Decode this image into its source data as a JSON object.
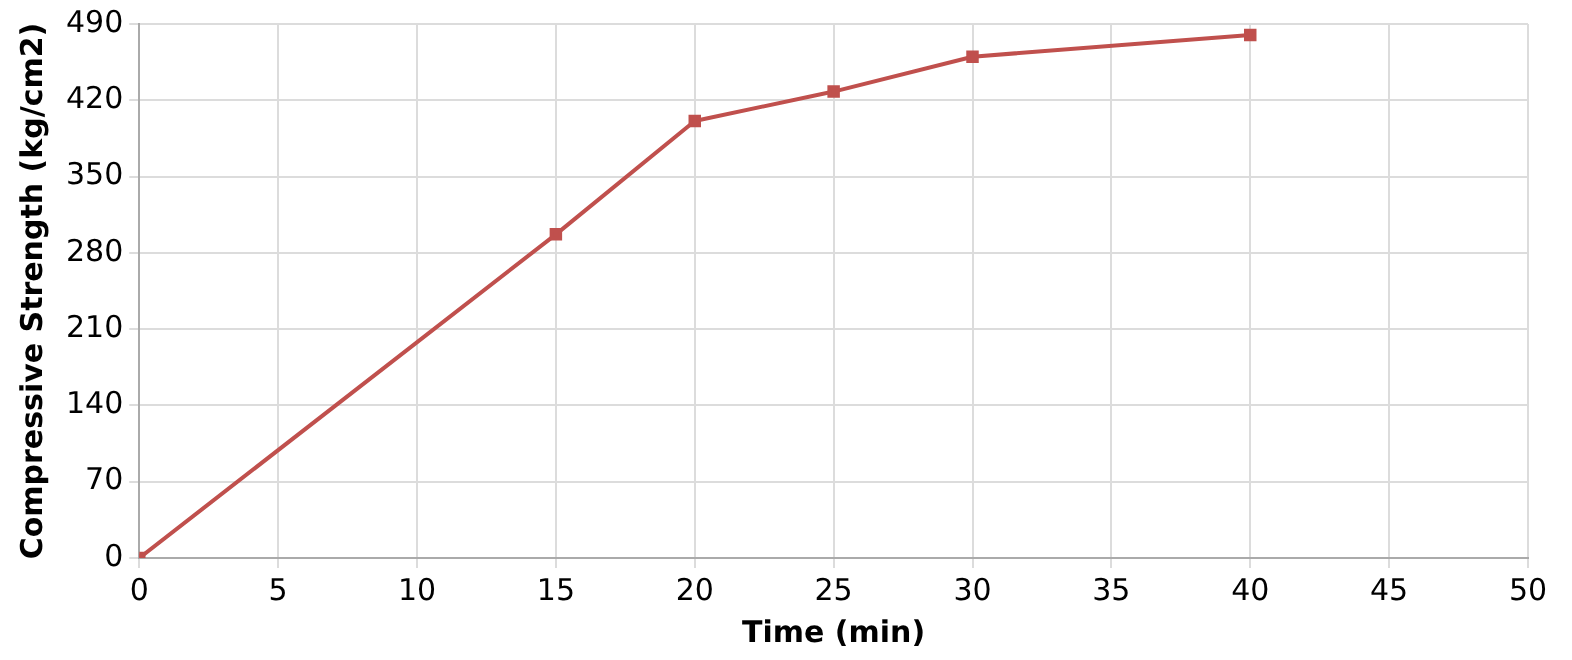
{
  "chart_data": {
    "type": "line",
    "xlabel": "Time (min)",
    "ylabel": "Compressive Strength (kg/cm2)",
    "x": [
      0,
      15,
      20,
      25,
      30,
      40
    ],
    "series": [
      {
        "color": "#c0504d",
        "values": [
          0,
          297,
          401,
          428,
          460,
          480
        ]
      }
    ],
    "xlim": [
      0,
      50
    ],
    "xticks": [
      0,
      5,
      10,
      15,
      20,
      25,
      30,
      35,
      40,
      45,
      50
    ],
    "ylim": [
      0,
      490
    ],
    "yticks": [
      0,
      70,
      140,
      210,
      280,
      350,
      420,
      490
    ],
    "grid": true,
    "legend": false,
    "marker": "square",
    "line_style": "solid"
  }
}
